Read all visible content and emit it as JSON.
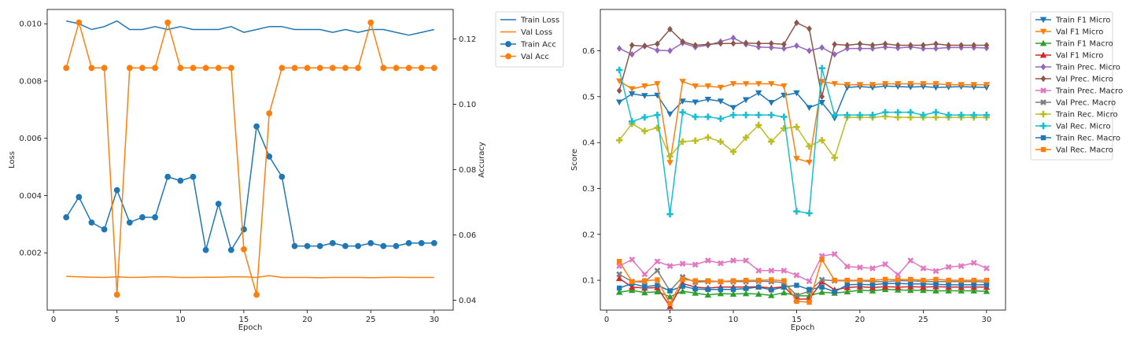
{
  "chart_data": [
    {
      "type": "line",
      "xlabel": "Epoch",
      "ylabel": "Loss",
      "ylabel_right": "Accuracy",
      "xlim": [
        -0.5,
        31.5
      ],
      "ylim": [
        0.0,
        0.0105
      ],
      "ylim_right": [
        0.037,
        0.129
      ],
      "xticks": [
        0,
        5,
        10,
        15,
        20,
        25,
        30
      ],
      "yticks": [
        0.002,
        0.004,
        0.006,
        0.008,
        0.01
      ],
      "yticks_right": [
        0.04,
        0.06,
        0.08,
        0.1,
        0.12
      ],
      "grid": false,
      "legend_position": "outside-right",
      "x": [
        1,
        2,
        3,
        4,
        5,
        6,
        7,
        8,
        9,
        10,
        11,
        12,
        13,
        14,
        15,
        16,
        17,
        18,
        19,
        20,
        21,
        22,
        23,
        24,
        25,
        26,
        27,
        28,
        29,
        30
      ],
      "series": [
        {
          "name": "Train Loss",
          "axis": "left",
          "color": "#1f77b4",
          "marker": "none",
          "values": [
            0.0101,
            0.01,
            0.0098,
            0.0099,
            0.0101,
            0.0098,
            0.0098,
            0.0099,
            0.0098,
            0.0099,
            0.0098,
            0.0098,
            0.0098,
            0.0099,
            0.0097,
            0.0098,
            0.0099,
            0.0099,
            0.0098,
            0.0098,
            0.0098,
            0.0097,
            0.0098,
            0.0097,
            0.0098,
            0.0098,
            0.0097,
            0.0096,
            0.0097,
            0.0098
          ]
        },
        {
          "name": "Val Loss",
          "axis": "left",
          "color": "#ff7f0e",
          "marker": "none",
          "values": [
            0.00118,
            0.00116,
            0.00115,
            0.00114,
            0.00116,
            0.00114,
            0.00115,
            0.00116,
            0.00116,
            0.00114,
            0.00114,
            0.00115,
            0.00115,
            0.00116,
            0.00116,
            0.00114,
            0.0012,
            0.00114,
            0.00114,
            0.00114,
            0.00113,
            0.00114,
            0.00114,
            0.00114,
            0.00113,
            0.00114,
            0.00115,
            0.00114,
            0.00114,
            0.00114
          ]
        },
        {
          "name": "Train Acc",
          "axis": "right",
          "color": "#1f77b4",
          "marker": "circle",
          "values": [
            0.0654,
            0.0716,
            0.0638,
            0.0617,
            0.0737,
            0.0638,
            0.0654,
            0.0654,
            0.0778,
            0.0766,
            0.0778,
            0.0554,
            0.0695,
            0.0554,
            0.0617,
            0.0932,
            0.084,
            0.0778,
            0.0566,
            0.0566,
            0.0566,
            0.0575,
            0.0566,
            0.0566,
            0.0575,
            0.0566,
            0.0566,
            0.0575,
            0.0575,
            0.0575
          ]
        },
        {
          "name": "Val Acc",
          "axis": "right",
          "color": "#ff7f0e",
          "marker": "circle",
          "values": [
            0.1111,
            0.125,
            0.1111,
            0.1111,
            0.0417,
            0.1111,
            0.1111,
            0.1111,
            0.125,
            0.1111,
            0.1111,
            0.1111,
            0.1111,
            0.1111,
            0.0556,
            0.0417,
            0.0972,
            0.1111,
            0.1111,
            0.1111,
            0.1111,
            0.1111,
            0.1111,
            0.1111,
            0.125,
            0.1111,
            0.1111,
            0.1111,
            0.1111,
            0.1111
          ]
        }
      ]
    },
    {
      "type": "line",
      "xlabel": "Epoch",
      "ylabel": "Score",
      "xlim": [
        -0.5,
        31.5
      ],
      "ylim": [
        0.035,
        0.69
      ],
      "xticks": [
        0,
        5,
        10,
        15,
        20,
        25,
        30
      ],
      "yticks": [
        0.1,
        0.2,
        0.3,
        0.4,
        0.5,
        0.6
      ],
      "grid": false,
      "legend_position": "outside-right",
      "x": [
        1,
        2,
        3,
        4,
        5,
        6,
        7,
        8,
        9,
        10,
        11,
        12,
        13,
        14,
        15,
        16,
        17,
        18,
        19,
        20,
        21,
        22,
        23,
        24,
        25,
        26,
        27,
        28,
        29,
        30
      ],
      "series": [
        {
          "name": "Train F1 Micro",
          "color": "#1f77b4",
          "marker": "tri-down",
          "values": [
            0.488,
            0.506,
            0.502,
            0.503,
            0.462,
            0.49,
            0.488,
            0.494,
            0.49,
            0.476,
            0.493,
            0.508,
            0.487,
            0.503,
            0.508,
            0.476,
            0.487,
            0.453,
            0.52,
            0.522,
            0.52,
            0.523,
            0.522,
            0.521,
            0.522,
            0.52,
            0.521,
            0.522,
            0.521,
            0.52
          ]
        },
        {
          "name": "Val F1 Micro",
          "color": "#ff7f0e",
          "marker": "tri-down",
          "values": [
            0.534,
            0.517,
            0.523,
            0.528,
            0.356,
            0.533,
            0.523,
            0.523,
            0.52,
            0.528,
            0.528,
            0.528,
            0.528,
            0.523,
            0.365,
            0.357,
            0.533,
            0.528,
            0.526,
            0.526,
            0.526,
            0.528,
            0.528,
            0.528,
            0.528,
            0.528,
            0.526,
            0.526,
            0.526,
            0.526
          ]
        },
        {
          "name": "Train F1 Macro",
          "color": "#2ca02c",
          "marker": "tri-up",
          "values": [
            0.074,
            0.078,
            0.073,
            0.075,
            0.064,
            0.076,
            0.072,
            0.068,
            0.071,
            0.07,
            0.071,
            0.07,
            0.067,
            0.073,
            0.066,
            0.066,
            0.074,
            0.072,
            0.075,
            0.078,
            0.077,
            0.08,
            0.079,
            0.078,
            0.078,
            0.077,
            0.077,
            0.077,
            0.077,
            0.076
          ]
        },
        {
          "name": "Val F1 Micro",
          "color": "#d62728",
          "marker": "tri-up",
          "values": [
            0.104,
            0.085,
            0.083,
            0.084,
            0.043,
            0.093,
            0.085,
            0.083,
            0.085,
            0.085,
            0.085,
            0.086,
            0.083,
            0.086,
            0.059,
            0.059,
            0.097,
            0.079,
            0.084,
            0.086,
            0.084,
            0.086,
            0.085,
            0.086,
            0.085,
            0.086,
            0.085,
            0.085,
            0.085,
            0.085
          ]
        },
        {
          "name": "Train Prec. Micro",
          "color": "#9467bd",
          "marker": "diamond",
          "values": [
            0.605,
            0.592,
            0.611,
            0.601,
            0.6,
            0.617,
            0.608,
            0.612,
            0.62,
            0.628,
            0.614,
            0.608,
            0.607,
            0.605,
            0.611,
            0.6,
            0.607,
            0.592,
            0.605,
            0.605,
            0.605,
            0.608,
            0.606,
            0.608,
            0.605,
            0.605,
            0.607,
            0.607,
            0.607,
            0.606
          ]
        },
        {
          "name": "Val Prec. Micro",
          "color": "#8c564b",
          "marker": "diamond",
          "values": [
            0.513,
            0.612,
            0.61,
            0.615,
            0.647,
            0.62,
            0.612,
            0.614,
            0.616,
            0.616,
            0.617,
            0.616,
            0.616,
            0.614,
            0.661,
            0.648,
            0.5,
            0.614,
            0.612,
            0.615,
            0.612,
            0.615,
            0.612,
            0.612,
            0.612,
            0.615,
            0.612,
            0.612,
            0.612,
            0.612
          ]
        },
        {
          "name": "Train Prec. Macro",
          "color": "#e377c2",
          "marker": "x-cross",
          "values": [
            0.131,
            0.145,
            0.113,
            0.141,
            0.131,
            0.136,
            0.134,
            0.143,
            0.137,
            0.143,
            0.143,
            0.121,
            0.121,
            0.121,
            0.111,
            0.098,
            0.153,
            0.157,
            0.13,
            0.128,
            0.126,
            0.135,
            0.112,
            0.143,
            0.126,
            0.12,
            0.129,
            0.131,
            0.138,
            0.126
          ]
        },
        {
          "name": "Val Prec. Macro",
          "color": "#7f7f7f",
          "marker": "x-cross",
          "values": [
            0.113,
            0.097,
            0.096,
            0.121,
            0.077,
            0.107,
            0.096,
            0.097,
            0.097,
            0.097,
            0.097,
            0.098,
            0.097,
            0.095,
            0.067,
            0.076,
            0.101,
            0.099,
            0.099,
            0.099,
            0.097,
            0.097,
            0.099,
            0.099,
            0.097,
            0.097,
            0.097,
            0.097,
            0.097,
            0.096
          ]
        },
        {
          "name": "Train Rec. Micro",
          "color": "#bcbd22",
          "marker": "plus",
          "values": [
            0.405,
            0.441,
            0.425,
            0.432,
            0.37,
            0.402,
            0.404,
            0.411,
            0.402,
            0.38,
            0.411,
            0.438,
            0.402,
            0.431,
            0.434,
            0.392,
            0.405,
            0.367,
            0.455,
            0.455,
            0.455,
            0.457,
            0.455,
            0.455,
            0.455,
            0.455,
            0.455,
            0.455,
            0.455,
            0.455
          ]
        },
        {
          "name": "Val Rec. Micro",
          "color": "#17becf",
          "marker": "plus",
          "values": [
            0.558,
            0.446,
            0.455,
            0.46,
            0.244,
            0.466,
            0.456,
            0.456,
            0.452,
            0.46,
            0.46,
            0.46,
            0.46,
            0.456,
            0.25,
            0.246,
            0.562,
            0.46,
            0.46,
            0.46,
            0.46,
            0.466,
            0.466,
            0.466,
            0.46,
            0.466,
            0.46,
            0.46,
            0.46,
            0.46
          ]
        },
        {
          "name": "Train Rec. Macro",
          "color": "#1f77b4",
          "marker": "square",
          "values": [
            0.083,
            0.093,
            0.086,
            0.089,
            0.077,
            0.087,
            0.081,
            0.08,
            0.08,
            0.08,
            0.082,
            0.085,
            0.079,
            0.085,
            0.089,
            0.08,
            0.085,
            0.075,
            0.09,
            0.091,
            0.09,
            0.093,
            0.093,
            0.092,
            0.092,
            0.091,
            0.09,
            0.09,
            0.09,
            0.09
          ]
        },
        {
          "name": "Val Rec. Macro",
          "color": "#ff7f0e",
          "marker": "square",
          "values": [
            0.141,
            0.097,
            0.099,
            0.101,
            0.049,
            0.102,
            0.099,
            0.099,
            0.097,
            0.099,
            0.1,
            0.1,
            0.101,
            0.099,
            0.054,
            0.052,
            0.145,
            0.1,
            0.1,
            0.1,
            0.1,
            0.102,
            0.101,
            0.102,
            0.1,
            0.102,
            0.1,
            0.1,
            0.1,
            0.1
          ]
        }
      ]
    }
  ]
}
